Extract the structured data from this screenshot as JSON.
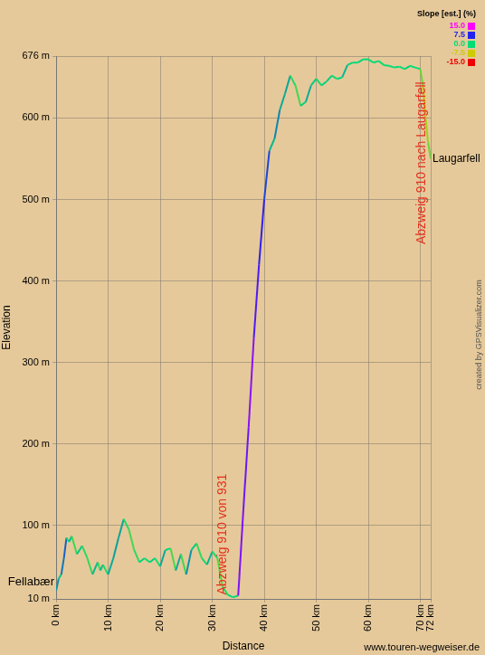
{
  "chart_data": {
    "type": "line",
    "x_label": "Distance",
    "y_label": "Elevation",
    "x": [
      0,
      0.5,
      1,
      1.5,
      2,
      2.5,
      3,
      4,
      5,
      6,
      7,
      8,
      8.5,
      9,
      10,
      11,
      12,
      13,
      14,
      15,
      16,
      17,
      18,
      19,
      20,
      21,
      22,
      23,
      24,
      25,
      26,
      27,
      28,
      29,
      30,
      31,
      32,
      33,
      34,
      35,
      36,
      37,
      38,
      39,
      40,
      41,
      42,
      43,
      44,
      45,
      46,
      47,
      48,
      49,
      50,
      51,
      52,
      53,
      54,
      55,
      56,
      57,
      58,
      59,
      60,
      61,
      62,
      63,
      64,
      65,
      66,
      67,
      68,
      69,
      70,
      70.5,
      71,
      71.5,
      72
    ],
    "values": [
      20,
      35,
      40,
      60,
      85,
      80,
      87,
      65,
      75,
      60,
      40,
      55,
      45,
      52,
      40,
      60,
      85,
      108,
      95,
      70,
      55,
      60,
      55,
      60,
      50,
      70,
      72,
      45,
      65,
      40,
      70,
      78,
      60,
      52,
      68,
      60,
      25,
      15,
      12,
      14,
      120,
      220,
      330,
      420,
      500,
      560,
      575,
      610,
      630,
      652,
      640,
      615,
      620,
      640,
      648,
      640,
      645,
      652,
      648,
      650,
      665,
      668,
      668,
      672,
      672,
      668,
      670,
      665,
      664,
      662,
      663,
      660,
      664,
      662,
      660,
      640,
      600,
      570,
      550
    ],
    "xlim": [
      0,
      72
    ],
    "xticks": [
      {
        "value": 0,
        "label": "0 km"
      },
      {
        "value": 10,
        "label": "10 km"
      },
      {
        "value": 20,
        "label": "20 km"
      },
      {
        "value": 30,
        "label": "30 km"
      },
      {
        "value": 40,
        "label": "40 km"
      },
      {
        "value": 50,
        "label": "50 km"
      },
      {
        "value": 60,
        "label": "60 km"
      },
      {
        "value": 70,
        "label": "70 km"
      },
      {
        "value": 72,
        "label": "72 km"
      }
    ],
    "ylim": [
      10,
      676
    ],
    "yticks": [
      {
        "value": 10,
        "label": "10 m"
      },
      {
        "value": 100,
        "label": "100 m"
      },
      {
        "value": 200,
        "label": "200 m"
      },
      {
        "value": 300,
        "label": "300 m"
      },
      {
        "value": 400,
        "label": "400 m"
      },
      {
        "value": 500,
        "label": "500 m"
      },
      {
        "value": 600,
        "label": "600 m"
      },
      {
        "value": 676,
        "label": "676 m"
      }
    ],
    "grid": true,
    "legend": false,
    "slope_scale": {
      "title": "Slope [est.] (%)",
      "ticks": [
        {
          "value": 15,
          "label": "15.0",
          "color": "#ff00ff"
        },
        {
          "value": 7.5,
          "label": "7.5",
          "color": "#2222ee"
        },
        {
          "value": 0,
          "label": "0.0",
          "color": "#00dd77"
        },
        {
          "value": -7.5,
          "label": "-7.5",
          "color": "#cccc00"
        },
        {
          "value": -15,
          "label": "-15.0",
          "color": "#ee0000"
        }
      ]
    },
    "start_label": "Fellabær",
    "end_label": "Laugarfell",
    "annotations": [
      {
        "text": "Abzweig 910 von 931",
        "x": 32,
        "y": 15
      },
      {
        "text": "Abzweig 910 nach Laugarfell",
        "x": 70.3,
        "y": 445
      }
    ],
    "credit": "created by GPSVisualizer.com",
    "source": "www.touren-wegweiser.de"
  }
}
